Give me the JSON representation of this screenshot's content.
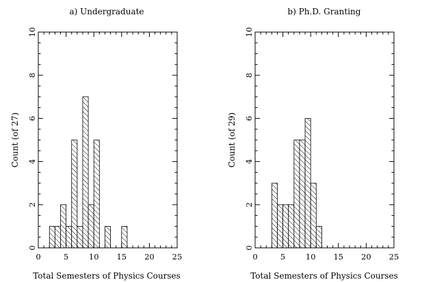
{
  "chart_data": [
    {
      "type": "bar",
      "title": "a) Undergraduate",
      "xlabel": "Total Semesters of Physics Courses",
      "ylabel": "Count (of 27)",
      "xlim": [
        0,
        25
      ],
      "ylim": [
        0,
        10
      ],
      "xticks": [
        0,
        5,
        10,
        15,
        20,
        25
      ],
      "yticks": [
        0,
        2,
        4,
        6,
        8,
        10
      ],
      "bin_width": 1,
      "grid": false,
      "hatch_color": "#000000",
      "bins": [
        {
          "start": 2,
          "end": 3,
          "value": 1
        },
        {
          "start": 3,
          "end": 4,
          "value": 1
        },
        {
          "start": 4,
          "end": 5,
          "value": 2
        },
        {
          "start": 5,
          "end": 6,
          "value": 1
        },
        {
          "start": 6,
          "end": 7,
          "value": 5
        },
        {
          "start": 7,
          "end": 8,
          "value": 1
        },
        {
          "start": 8,
          "end": 9,
          "value": 7
        },
        {
          "start": 9,
          "end": 10,
          "value": 2
        },
        {
          "start": 10,
          "end": 11,
          "value": 5
        },
        {
          "start": 12,
          "end": 13,
          "value": 1
        },
        {
          "start": 15,
          "end": 16,
          "value": 1
        }
      ]
    },
    {
      "type": "bar",
      "title": "b) Ph.D. Granting",
      "xlabel": "Total Semesters of Physics Courses",
      "ylabel": "Count (of 29)",
      "xlim": [
        0,
        25
      ],
      "ylim": [
        0,
        10
      ],
      "xticks": [
        0,
        5,
        10,
        15,
        20,
        25
      ],
      "yticks": [
        0,
        2,
        4,
        6,
        8,
        10
      ],
      "bin_width": 1,
      "grid": false,
      "hatch_color": "#000000",
      "bins": [
        {
          "start": 3,
          "end": 4,
          "value": 3
        },
        {
          "start": 4,
          "end": 5,
          "value": 2
        },
        {
          "start": 5,
          "end": 6,
          "value": 2
        },
        {
          "start": 6,
          "end": 7,
          "value": 2
        },
        {
          "start": 7,
          "end": 8,
          "value": 5
        },
        {
          "start": 8,
          "end": 9,
          "value": 5
        },
        {
          "start": 9,
          "end": 10,
          "value": 6
        },
        {
          "start": 10,
          "end": 11,
          "value": 3
        },
        {
          "start": 11,
          "end": 12,
          "value": 1
        }
      ]
    }
  ]
}
